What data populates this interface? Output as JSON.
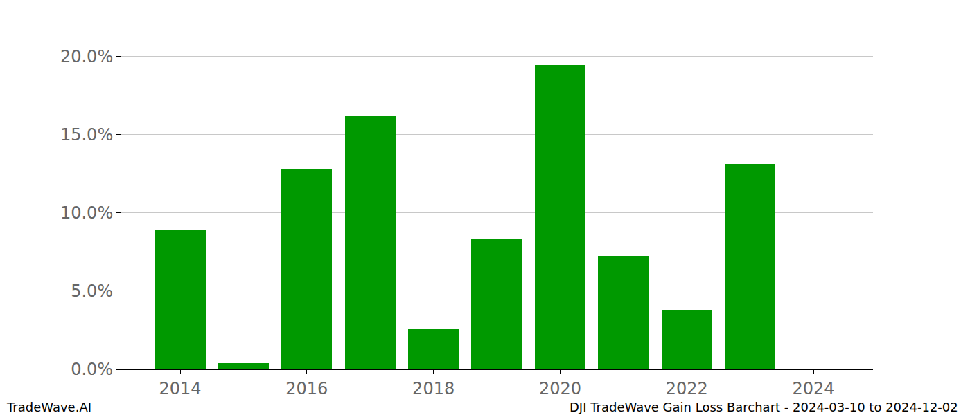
{
  "chart_data": {
    "type": "bar",
    "x": [
      2014,
      2015,
      2016,
      2017,
      2018,
      2019,
      2020,
      2021,
      2022,
      2023
    ],
    "values": [
      8.89,
      0.4,
      12.83,
      16.19,
      2.57,
      8.32,
      19.47,
      7.26,
      3.81,
      13.14
    ],
    "color": "#009900",
    "xlim": [
      2013.07,
      2024.94
    ],
    "xticks": [
      2014,
      2016,
      2018,
      2020,
      2022,
      2024
    ],
    "ylim": [
      0,
      20.44
    ],
    "yticks": [
      {
        "value": 0,
        "label": "0.0%"
      },
      {
        "value": 5,
        "label": "5.0%"
      },
      {
        "value": 10,
        "label": "10.0%"
      },
      {
        "value": 15,
        "label": "15.0%"
      },
      {
        "value": 20,
        "label": "20.0%"
      }
    ],
    "grid": true,
    "annotations": [
      "TradeWave.AI",
      "DJI TradeWave Gain Loss Barchart - 2024-03-10 to 2024-12-02"
    ]
  }
}
